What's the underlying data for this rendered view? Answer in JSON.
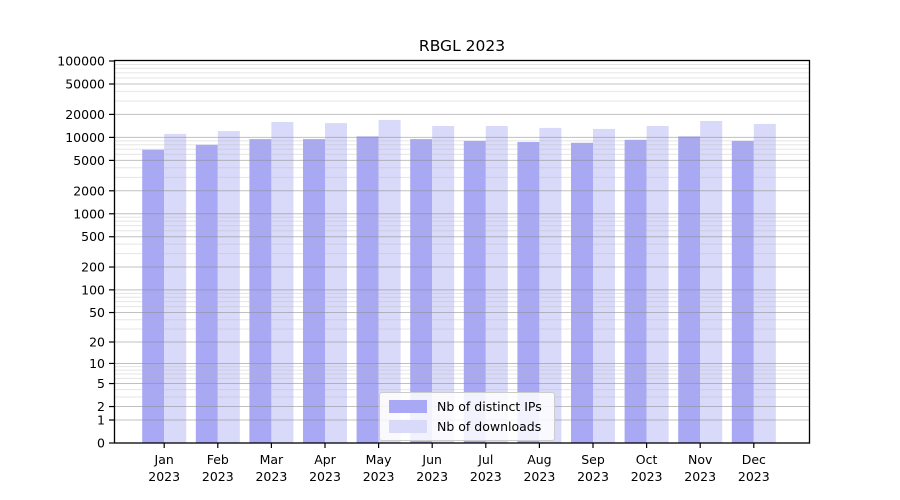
{
  "chart_data": {
    "type": "bar",
    "title": "RBGL 2023",
    "categories": [
      {
        "line1": "Jan",
        "line2": "2023"
      },
      {
        "line1": "Feb",
        "line2": "2023"
      },
      {
        "line1": "Mar",
        "line2": "2023"
      },
      {
        "line1": "Apr",
        "line2": "2023"
      },
      {
        "line1": "May",
        "line2": "2023"
      },
      {
        "line1": "Jun",
        "line2": "2023"
      },
      {
        "line1": "Jul",
        "line2": "2023"
      },
      {
        "line1": "Aug",
        "line2": "2023"
      },
      {
        "line1": "Sep",
        "line2": "2023"
      },
      {
        "line1": "Oct",
        "line2": "2023"
      },
      {
        "line1": "Nov",
        "line2": "2023"
      },
      {
        "line1": "Dec",
        "line2": "2023"
      }
    ],
    "series": [
      {
        "name": "Nb of distinct IPs",
        "color": "#a8a8f4",
        "values": [
          6900,
          8000,
          9500,
          9500,
          10300,
          9500,
          9000,
          8700,
          8500,
          9300,
          10300,
          9000
        ]
      },
      {
        "name": "Nb of downloads",
        "color": "#d9d9f9",
        "values": [
          11100,
          12100,
          15900,
          15400,
          16900,
          14100,
          14100,
          13300,
          12900,
          14100,
          16400,
          15000
        ]
      }
    ],
    "yticks": [
      0,
      1,
      2,
      5,
      10,
      20,
      50,
      100,
      200,
      500,
      1000,
      2000,
      5000,
      10000,
      20000,
      50000,
      100000
    ],
    "ylim": [
      0,
      100000
    ],
    "yscale": "log10(value+1)",
    "grid": true,
    "legend_position": "bottom-center",
    "xlabel": "",
    "ylabel": ""
  }
}
